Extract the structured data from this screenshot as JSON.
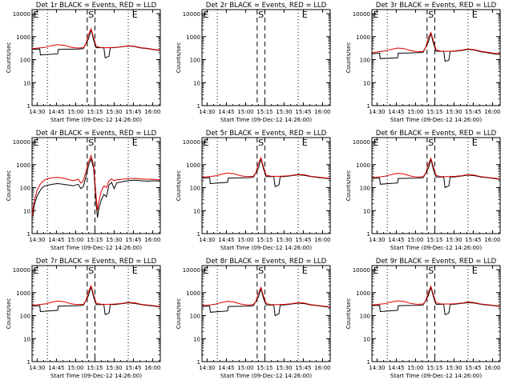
{
  "colors": {
    "events": "#000000",
    "lld": "#e00000",
    "axes": "#000000",
    "background": "#ffffff"
  },
  "common": {
    "ylabel": "Counts/sec",
    "xlabel": "Start Time (09-Dec-12 14:26:00)",
    "x_ticks": [
      "14:30",
      "14:45",
      "15:00",
      "15:15",
      "15:30",
      "15:45",
      "16:00"
    ],
    "y_ticks": [
      "1",
      "10",
      "100",
      "1000",
      "10000"
    ],
    "markers": [
      "E",
      "S",
      "E"
    ]
  },
  "chart_data": [
    {
      "type": "line",
      "title": "Det 1r BLACK = Events, RED = LLD",
      "empty": false,
      "x_units": "minutes after 14:26:00",
      "ylog": true,
      "xlim": [
        0,
        100
      ],
      "ylim": [
        1,
        15000
      ],
      "dotted_lines_x": [
        12,
        75
      ],
      "dashed_lines_x": [
        43,
        49
      ],
      "series": [
        {
          "name": "Events",
          "color": "#000000",
          "x": [
            0,
            6,
            6.5,
            20,
            20.5,
            36,
            40,
            44,
            46,
            48,
            50,
            54,
            56,
            57,
            60,
            61,
            64,
            70,
            75,
            80,
            85,
            90,
            95,
            100
          ],
          "y": [
            280,
            290,
            160,
            180,
            280,
            290,
            300,
            800,
            2000,
            700,
            330,
            330,
            330,
            120,
            140,
            330,
            330,
            360,
            390,
            370,
            320,
            300,
            270,
            250
          ]
        },
        {
          "name": "LLD",
          "color": "#e00000",
          "x": [
            0,
            5,
            10,
            15,
            20,
            25,
            30,
            35,
            40,
            42,
            44,
            46,
            48,
            50,
            54,
            60,
            65,
            70,
            75,
            80,
            85,
            90,
            95,
            100
          ],
          "y": [
            300,
            320,
            340,
            400,
            450,
            420,
            350,
            320,
            330,
            500,
            1200,
            2200,
            900,
            380,
            330,
            330,
            340,
            360,
            400,
            380,
            330,
            310,
            280,
            260
          ]
        }
      ]
    },
    {
      "type": "line",
      "title": "Det 2r BLACK = Events, RED = LLD",
      "empty": true,
      "x_units": "minutes after 14:26:00",
      "ylog": true,
      "xlim": [
        0,
        100
      ],
      "ylim": [
        1,
        15000
      ],
      "dotted_lines_x": [
        12,
        75
      ],
      "dashed_lines_x": [
        43,
        49
      ],
      "series": []
    },
    {
      "type": "line",
      "title": "Det 3r BLACK = Events, RED = LLD",
      "empty": false,
      "x_units": "minutes after 14:26:00",
      "ylog": true,
      "xlim": [
        0,
        100
      ],
      "ylim": [
        1,
        15000
      ],
      "dotted_lines_x": [
        12,
        75
      ],
      "dashed_lines_x": [
        43,
        49
      ],
      "series": [
        {
          "name": "Events",
          "color": "#000000",
          "x": [
            0,
            6,
            6.5,
            20,
            20.5,
            36,
            40,
            44,
            46,
            48,
            50,
            54,
            56,
            57,
            60,
            61,
            64,
            70,
            75,
            80,
            85,
            90,
            95,
            100
          ],
          "y": [
            180,
            190,
            110,
            120,
            190,
            200,
            210,
            600,
            1400,
            500,
            230,
            230,
            230,
            85,
            95,
            230,
            230,
            250,
            280,
            260,
            220,
            200,
            180,
            170
          ]
        },
        {
          "name": "LLD",
          "color": "#e00000",
          "x": [
            0,
            5,
            10,
            15,
            20,
            25,
            30,
            35,
            40,
            42,
            44,
            46,
            48,
            50,
            54,
            60,
            65,
            70,
            75,
            80,
            85,
            90,
            95,
            100
          ],
          "y": [
            200,
            220,
            240,
            280,
            320,
            300,
            250,
            220,
            230,
            350,
            900,
            1500,
            650,
            270,
            230,
            230,
            240,
            260,
            290,
            270,
            230,
            210,
            190,
            180
          ]
        }
      ]
    },
    {
      "type": "line",
      "title": "Det 4r BLACK = Events, RED = LLD",
      "empty": false,
      "x_units": "minutes after 14:26:00",
      "ylog": true,
      "xlim": [
        0,
        100
      ],
      "ylim": [
        1,
        15000
      ],
      "dotted_lines_x": [
        12,
        75
      ],
      "dashed_lines_x": [
        43,
        49
      ],
      "series": [
        {
          "name": "Events",
          "color": "#000000",
          "x": [
            0,
            1,
            2,
            4,
            6,
            8,
            10,
            13,
            16,
            20,
            24,
            28,
            32,
            36,
            38,
            40,
            42,
            44,
            46,
            48,
            49,
            50,
            51,
            52,
            54,
            56,
            58,
            60,
            62,
            64,
            66,
            70,
            75,
            80,
            85,
            90,
            95,
            100
          ],
          "y": [
            5,
            10,
            20,
            45,
            70,
            100,
            120,
            130,
            140,
            150,
            140,
            130,
            120,
            140,
            90,
            110,
            300,
            900,
            1800,
            700,
            120,
            20,
            5,
            12,
            30,
            50,
            40,
            130,
            170,
            90,
            160,
            180,
            200,
            210,
            200,
            190,
            200,
            190
          ]
        },
        {
          "name": "LLD",
          "color": "#e00000",
          "x": [
            0,
            1,
            2,
            4,
            6,
            8,
            10,
            13,
            16,
            20,
            24,
            28,
            32,
            36,
            38,
            40,
            42,
            44,
            46,
            48,
            49,
            50,
            51,
            52,
            54,
            56,
            58,
            60,
            62,
            64,
            66,
            70,
            75,
            80,
            85,
            90,
            95,
            100
          ],
          "y": [
            6,
            15,
            30,
            80,
            130,
            180,
            220,
            250,
            270,
            280,
            260,
            230,
            200,
            230,
            160,
            200,
            500,
            1300,
            2500,
            1000,
            200,
            40,
            10,
            25,
            70,
            120,
            100,
            200,
            240,
            200,
            220,
            230,
            250,
            250,
            240,
            230,
            230,
            220
          ]
        }
      ]
    },
    {
      "type": "line",
      "title": "Det 5r BLACK = Events, RED = LLD",
      "empty": false,
      "x_units": "minutes after 14:26:00",
      "ylog": true,
      "xlim": [
        0,
        100
      ],
      "ylim": [
        1,
        15000
      ],
      "dotted_lines_x": [
        12,
        75
      ],
      "dashed_lines_x": [
        43,
        49
      ],
      "series": [
        {
          "name": "Events",
          "color": "#000000",
          "x": [
            0,
            6,
            6.5,
            20,
            20.5,
            36,
            40,
            44,
            46,
            48,
            50,
            54,
            56,
            57,
            60,
            61,
            64,
            70,
            75,
            80,
            85,
            90,
            95,
            100
          ],
          "y": [
            260,
            270,
            150,
            170,
            260,
            270,
            280,
            700,
            1800,
            650,
            300,
            300,
            300,
            110,
            130,
            300,
            300,
            330,
            360,
            340,
            300,
            280,
            260,
            240
          ]
        },
        {
          "name": "LLD",
          "color": "#e00000",
          "x": [
            0,
            5,
            10,
            15,
            20,
            25,
            30,
            35,
            40,
            42,
            44,
            46,
            48,
            50,
            54,
            60,
            65,
            70,
            75,
            80,
            85,
            90,
            95,
            100
          ],
          "y": [
            280,
            300,
            320,
            380,
            430,
            400,
            330,
            300,
            310,
            450,
            1100,
            2000,
            800,
            350,
            310,
            310,
            320,
            340,
            380,
            360,
            310,
            290,
            270,
            250
          ]
        }
      ]
    },
    {
      "type": "line",
      "title": "Det 6r BLACK = Events, RED = LLD",
      "empty": false,
      "x_units": "minutes after 14:26:00",
      "ylog": true,
      "xlim": [
        0,
        100
      ],
      "ylim": [
        1,
        15000
      ],
      "dotted_lines_x": [
        12,
        75
      ],
      "dashed_lines_x": [
        43,
        49
      ],
      "series": [
        {
          "name": "Events",
          "color": "#000000",
          "x": [
            0,
            6,
            6.5,
            20,
            20.5,
            36,
            40,
            44,
            46,
            48,
            50,
            54,
            56,
            57,
            60,
            61,
            64,
            70,
            75,
            80,
            85,
            90,
            95,
            100
          ],
          "y": [
            250,
            260,
            140,
            160,
            250,
            260,
            270,
            700,
            1700,
            600,
            290,
            290,
            290,
            100,
            120,
            290,
            290,
            320,
            350,
            330,
            290,
            270,
            250,
            230
          ]
        },
        {
          "name": "LLD",
          "color": "#e00000",
          "x": [
            0,
            5,
            10,
            15,
            20,
            25,
            30,
            35,
            40,
            42,
            44,
            46,
            48,
            50,
            54,
            60,
            65,
            70,
            75,
            80,
            85,
            90,
            95,
            100
          ],
          "y": [
            270,
            290,
            310,
            370,
            420,
            390,
            320,
            290,
            300,
            440,
            1050,
            1900,
            780,
            340,
            300,
            300,
            310,
            330,
            370,
            350,
            300,
            280,
            260,
            240
          ]
        }
      ]
    },
    {
      "type": "line",
      "title": "Det 7r BLACK = Events, RED = LLD",
      "empty": false,
      "x_units": "minutes after 14:26:00",
      "ylog": true,
      "xlim": [
        0,
        100
      ],
      "ylim": [
        1,
        15000
      ],
      "dotted_lines_x": [
        12,
        75
      ],
      "dashed_lines_x": [
        43,
        49
      ],
      "series": [
        {
          "name": "Events",
          "color": "#000000",
          "x": [
            0,
            6,
            6.5,
            20,
            20.5,
            36,
            40,
            44,
            46,
            48,
            50,
            54,
            56,
            57,
            60,
            61,
            64,
            70,
            75,
            80,
            85,
            90,
            95,
            100
          ],
          "y": [
            260,
            270,
            150,
            170,
            260,
            270,
            280,
            750,
            1800,
            650,
            300,
            300,
            300,
            110,
            130,
            300,
            300,
            330,
            360,
            340,
            300,
            280,
            260,
            240
          ]
        },
        {
          "name": "LLD",
          "color": "#e00000",
          "x": [
            0,
            5,
            10,
            15,
            20,
            25,
            30,
            35,
            40,
            42,
            44,
            46,
            48,
            50,
            54,
            60,
            65,
            70,
            75,
            80,
            85,
            90,
            95,
            100
          ],
          "y": [
            280,
            300,
            320,
            380,
            430,
            400,
            330,
            300,
            310,
            450,
            1100,
            2000,
            800,
            350,
            310,
            310,
            320,
            340,
            380,
            360,
            310,
            290,
            270,
            250
          ]
        }
      ]
    },
    {
      "type": "line",
      "title": "Det 8r BLACK = Events, RED = LLD",
      "empty": false,
      "x_units": "minutes after 14:26:00",
      "ylog": true,
      "xlim": [
        0,
        100
      ],
      "ylim": [
        1,
        15000
      ],
      "dotted_lines_x": [
        12,
        75
      ],
      "dashed_lines_x": [
        43,
        49
      ],
      "series": [
        {
          "name": "Events",
          "color": "#000000",
          "x": [
            0,
            6,
            6.5,
            20,
            20.5,
            36,
            40,
            44,
            46,
            48,
            50,
            54,
            56,
            57,
            60,
            61,
            64,
            70,
            75,
            80,
            85,
            90,
            95,
            100
          ],
          "y": [
            250,
            260,
            140,
            160,
            250,
            260,
            270,
            650,
            1500,
            550,
            290,
            290,
            290,
            100,
            120,
            290,
            290,
            320,
            350,
            330,
            290,
            270,
            250,
            230
          ]
        },
        {
          "name": "LLD",
          "color": "#e00000",
          "x": [
            0,
            5,
            10,
            15,
            20,
            25,
            30,
            35,
            40,
            42,
            44,
            46,
            48,
            50,
            54,
            60,
            65,
            70,
            75,
            80,
            85,
            90,
            95,
            100
          ],
          "y": [
            270,
            290,
            310,
            370,
            420,
            390,
            320,
            290,
            300,
            420,
            950,
            1700,
            700,
            340,
            300,
            300,
            310,
            330,
            370,
            350,
            300,
            280,
            260,
            240
          ]
        }
      ]
    },
    {
      "type": "line",
      "title": "Det 9r BLACK = Events, RED = LLD",
      "empty": false,
      "x_units": "minutes after 14:26:00",
      "ylog": true,
      "xlim": [
        0,
        100
      ],
      "ylim": [
        1,
        15000
      ],
      "dotted_lines_x": [
        12,
        75
      ],
      "dashed_lines_x": [
        43,
        49
      ],
      "series": [
        {
          "name": "Events",
          "color": "#000000",
          "x": [
            0,
            6,
            6.5,
            20,
            20.5,
            36,
            40,
            44,
            46,
            48,
            50,
            54,
            56,
            57,
            60,
            61,
            64,
            70,
            75,
            80,
            85,
            90,
            95,
            100
          ],
          "y": [
            270,
            280,
            150,
            170,
            270,
            280,
            290,
            750,
            1700,
            650,
            310,
            310,
            310,
            110,
            130,
            310,
            310,
            340,
            370,
            350,
            310,
            290,
            270,
            250
          ]
        },
        {
          "name": "LLD",
          "color": "#e00000",
          "x": [
            0,
            5,
            10,
            15,
            20,
            25,
            30,
            35,
            40,
            42,
            44,
            46,
            48,
            50,
            54,
            60,
            65,
            70,
            75,
            80,
            85,
            90,
            95,
            100
          ],
          "y": [
            290,
            310,
            330,
            390,
            440,
            410,
            340,
            310,
            320,
            460,
            1050,
            1900,
            800,
            360,
            320,
            320,
            330,
            350,
            390,
            370,
            320,
            300,
            280,
            260
          ]
        }
      ]
    }
  ]
}
